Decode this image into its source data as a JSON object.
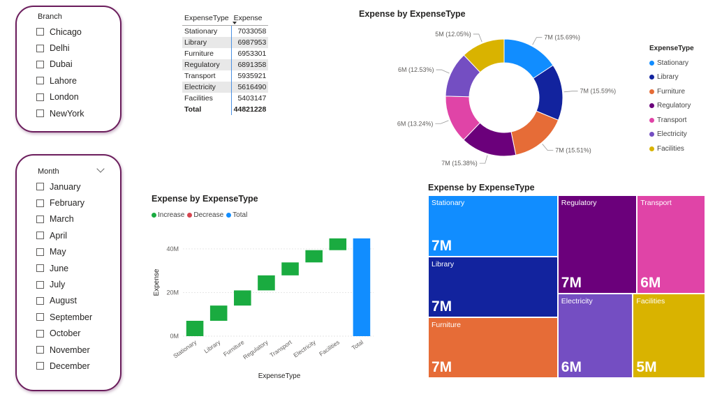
{
  "branch_slicer": {
    "title": "Branch",
    "items": [
      "Chicago",
      "Delhi",
      "Dubai",
      "Lahore",
      "London",
      "NewYork"
    ]
  },
  "month_slicer": {
    "title": "Month",
    "items": [
      "January",
      "February",
      "March",
      "April",
      "May",
      "June",
      "July",
      "August",
      "September",
      "October",
      "November",
      "December"
    ]
  },
  "table": {
    "headers": [
      "ExpenseType",
      "Expense"
    ],
    "rows": [
      [
        "Stationary",
        "7033058"
      ],
      [
        "Library",
        "6987953"
      ],
      [
        "Furniture",
        "6953301"
      ],
      [
        "Regulatory",
        "6891358"
      ],
      [
        "Transport",
        "5935921"
      ],
      [
        "Electricity",
        "5616490"
      ],
      [
        "Facilities",
        "5403147"
      ]
    ],
    "total_label": "Total",
    "total_value": "44821228"
  },
  "colors": {
    "Stationary": "#118dff",
    "Library": "#12239e",
    "Furniture": "#e66c37",
    "Regulatory": "#6b007b",
    "Transport": "#e044a7",
    "Electricity": "#744ec2",
    "Facilities": "#d9b300",
    "increase": "#1aab40",
    "decrease": "#d64550",
    "total": "#118dff",
    "slicer_border": "#6b1d5c"
  },
  "chart_data": [
    {
      "type": "pie",
      "subtype": "donut",
      "title": "Expense by ExpenseType",
      "legend_title": "ExpenseType",
      "legend_position": "right",
      "categories": [
        "Stationary",
        "Library",
        "Furniture",
        "Regulatory",
        "Transport",
        "Electricity",
        "Facilities"
      ],
      "values": [
        7033058,
        6987953,
        6953301,
        6891358,
        5935921,
        5616490,
        5403147
      ],
      "data_labels": [
        "7M (15.69%)",
        "7M (15.59%)",
        "7M (15.51%)",
        "7M (15.38%)",
        "6M (13.24%)",
        "6M (12.53%)",
        "5M (12.05%)"
      ]
    },
    {
      "type": "bar",
      "subtype": "waterfall",
      "title": "Expense by ExpenseType",
      "xlabel": "ExpenseType",
      "ylabel": "Expense",
      "legend": [
        "Increase",
        "Decrease",
        "Total"
      ],
      "legend_position": "top-left",
      "categories": [
        "Stationary",
        "Library",
        "Furniture",
        "Regulatory",
        "Transport",
        "Electricity",
        "Facilities",
        "Total"
      ],
      "values": [
        7033058,
        6987953,
        6953301,
        6891358,
        5935921,
        5616490,
        5403147,
        44821228
      ],
      "y_ticks": [
        "0M",
        "20M",
        "40M"
      ],
      "ylim": [
        0,
        47000000
      ],
      "grid": true
    },
    {
      "type": "treemap",
      "title": "Expense by ExpenseType",
      "categories": [
        "Stationary",
        "Library",
        "Furniture",
        "Regulatory",
        "Transport",
        "Electricity",
        "Facilities"
      ],
      "values": [
        7033058,
        6987953,
        6953301,
        6891358,
        5935921,
        5616490,
        5403147
      ],
      "data_labels": [
        "7M",
        "7M",
        "7M",
        "7M",
        "6M",
        "6M",
        "5M"
      ]
    }
  ]
}
